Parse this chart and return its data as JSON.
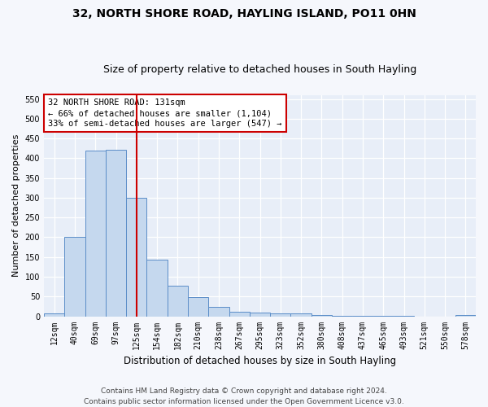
{
  "title_line1": "32, NORTH SHORE ROAD, HAYLING ISLAND, PO11 0HN",
  "title_line2": "Size of property relative to detached houses in South Hayling",
  "xlabel": "Distribution of detached houses by size in South Hayling",
  "ylabel": "Number of detached properties",
  "footnote": "Contains HM Land Registry data © Crown copyright and database right 2024.\nContains public sector information licensed under the Open Government Licence v3.0.",
  "categories": [
    "12sqm",
    "40sqm",
    "69sqm",
    "97sqm",
    "125sqm",
    "154sqm",
    "182sqm",
    "210sqm",
    "238sqm",
    "267sqm",
    "295sqm",
    "323sqm",
    "352sqm",
    "380sqm",
    "408sqm",
    "437sqm",
    "465sqm",
    "493sqm",
    "521sqm",
    "550sqm",
    "578sqm"
  ],
  "values": [
    8,
    200,
    420,
    422,
    300,
    143,
    77,
    49,
    24,
    12,
    10,
    8,
    8,
    3,
    2,
    1,
    1,
    1,
    0,
    0,
    3
  ],
  "bar_color": "#c5d8ee",
  "bar_edge_color": "#5b8dc8",
  "background_color": "#e8eef8",
  "fig_background_color": "#f5f7fc",
  "grid_color": "#ffffff",
  "vline_color": "#cc0000",
  "vline_x_index": 4,
  "annotation_text": "32 NORTH SHORE ROAD: 131sqm\n← 66% of detached houses are smaller (1,104)\n33% of semi-detached houses are larger (547) →",
  "annotation_box_facecolor": "#ffffff",
  "annotation_box_edgecolor": "#cc0000",
  "ylim": [
    0,
    560
  ],
  "yticks": [
    0,
    50,
    100,
    150,
    200,
    250,
    300,
    350,
    400,
    450,
    500,
    550
  ],
  "title1_fontsize": 10,
  "title2_fontsize": 9,
  "xlabel_fontsize": 8.5,
  "ylabel_fontsize": 8,
  "tick_fontsize": 7,
  "annotation_fontsize": 7.5,
  "footnote_fontsize": 6.5
}
